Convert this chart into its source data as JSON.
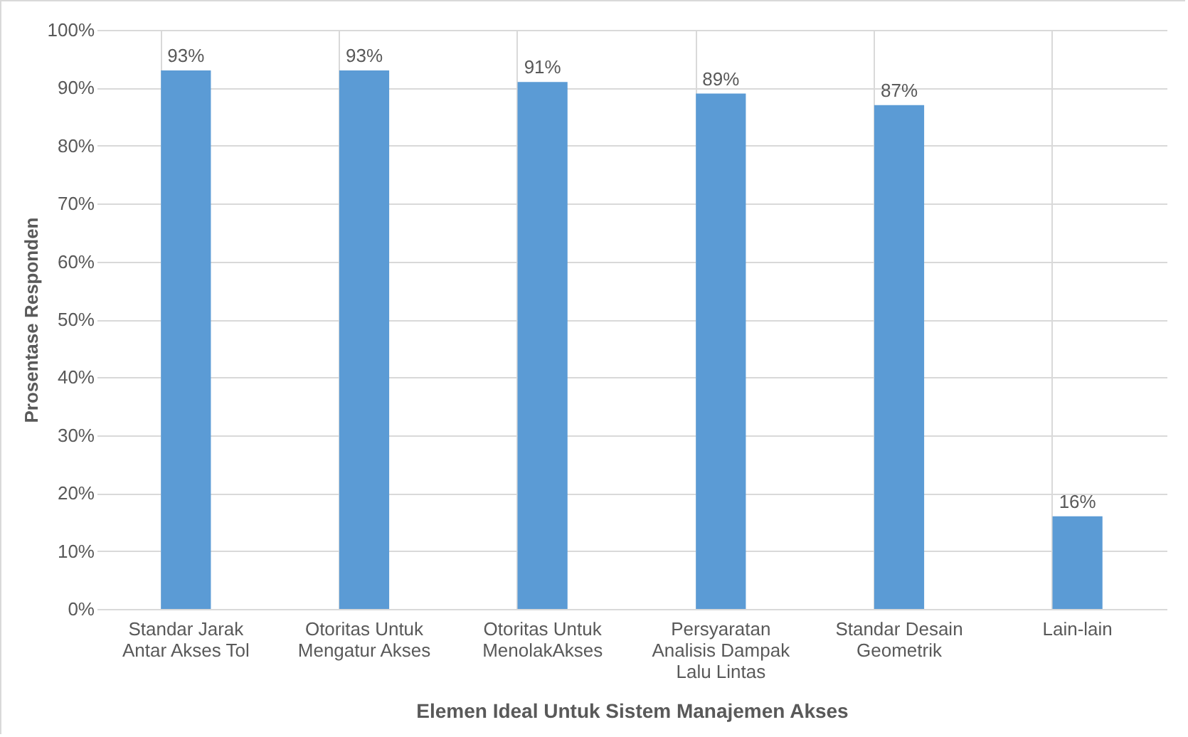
{
  "chart_data": {
    "type": "bar",
    "xlabel": "Elemen Ideal Untuk Sistem Manajemen Akses",
    "ylabel": "Prosentase Responden",
    "categories": [
      "Standar Jarak Antar Akses Tol",
      "Otoritas Untuk Mengatur Akses",
      "Otoritas Untuk MenolakAkses",
      "Persyaratan Analisis Dampak Lalu Lintas",
      "Standar Desain Geometrik",
      "Lain-lain"
    ],
    "values": [
      93,
      93,
      91,
      89,
      87,
      16
    ],
    "value_labels": [
      "93%",
      "93%",
      "91%",
      "89%",
      "87%",
      "16%"
    ],
    "color": "#5b9bd5",
    "ylim": [
      0,
      100
    ],
    "yticks": [
      {
        "value": 0,
        "label": "0%"
      },
      {
        "value": 10,
        "label": "10%"
      },
      {
        "value": 20,
        "label": "20%"
      },
      {
        "value": 30,
        "label": "30%"
      },
      {
        "value": 40,
        "label": "40%"
      },
      {
        "value": 50,
        "label": "50%"
      },
      {
        "value": 60,
        "label": "60%"
      },
      {
        "value": 70,
        "label": "70%"
      },
      {
        "value": 80,
        "label": "80%"
      },
      {
        "value": 90,
        "label": "90%"
      },
      {
        "value": 100,
        "label": "100%"
      }
    ],
    "grid": true
  }
}
